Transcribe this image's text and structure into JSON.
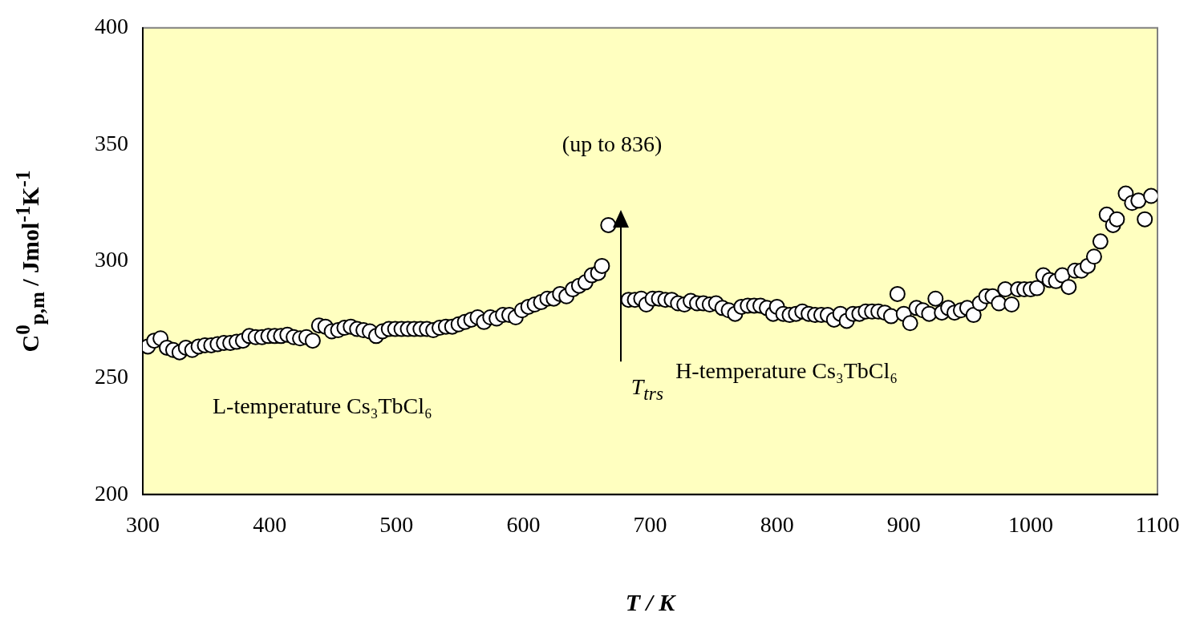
{
  "chart_data": {
    "type": "scatter",
    "xlabel": "T / K",
    "ylabel": "C$^{0}$$_{p,m}$ / Jmol$^{-1}$K$^{-1}$",
    "annotations": [
      "(up to 836)",
      "T$_{trs}$",
      "L-temperature Cs₃TbCl₆",
      "H-temperature Cs₃TbCl₆"
    ],
    "xlim": [
      300,
      1100
    ],
    "xticks": [
      300,
      400,
      500,
      600,
      700,
      800,
      900,
      1000,
      1100
    ],
    "ylim": [
      200,
      400
    ],
    "yticks": [
      200,
      250,
      300,
      350,
      400
    ],
    "grid": false,
    "legend": false,
    "marker": "circle",
    "series": [
      {
        "color": "#ffffff",
        "x": [
          304,
          309,
          314,
          319,
          324,
          329,
          334,
          339,
          344,
          349,
          354,
          359,
          364,
          369,
          374,
          379,
          384,
          389,
          394,
          399,
          404,
          409,
          414,
          419,
          424,
          429,
          434,
          439,
          444,
          449,
          454,
          459,
          464,
          469,
          474,
          479,
          484,
          489,
          494,
          499,
          504,
          509,
          514,
          519,
          524,
          529,
          534,
          539,
          544,
          549,
          554,
          559,
          564,
          569,
          574,
          579,
          584,
          589,
          594,
          599,
          604,
          609,
          614,
          619,
          624,
          629,
          634,
          639,
          644,
          649,
          654,
          659,
          662,
          667,
          683,
          688,
          693,
          697,
          702,
          707,
          712,
          717,
          722,
          727,
          732,
          737,
          742,
          747,
          752,
          757,
          762,
          767,
          772,
          777,
          782,
          787,
          792,
          797,
          800,
          805,
          810,
          815,
          820,
          825,
          830,
          835,
          840,
          845,
          850,
          855,
          860,
          865,
          870,
          875,
          880,
          885,
          890,
          895,
          900,
          905,
          910,
          915,
          920,
          925,
          930,
          935,
          940,
          945,
          950,
          955,
          960,
          965,
          970,
          975,
          980,
          985,
          990,
          995,
          1000,
          1005,
          1010,
          1015,
          1020,
          1025,
          1030,
          1035,
          1040,
          1045,
          1050,
          1055,
          1060,
          1065,
          1068,
          1075,
          1080,
          1085,
          1090,
          1095
        ],
        "values": [
          263.5,
          266,
          267,
          263,
          262,
          261,
          263,
          262,
          263.5,
          264,
          264,
          264.5,
          265,
          265,
          265.5,
          266,
          268,
          267.5,
          267.5,
          268,
          268,
          268,
          268.5,
          267.5,
          267,
          267.5,
          266,
          272.5,
          272,
          270,
          270.5,
          271.5,
          272,
          271,
          270.5,
          270,
          268,
          270,
          271,
          271,
          271,
          271,
          271,
          271,
          271,
          270.5,
          271.5,
          272,
          272,
          273,
          274,
          275,
          276,
          274,
          276,
          275.5,
          277,
          277,
          276,
          279,
          280.5,
          281.5,
          282.5,
          284,
          284,
          286,
          285,
          288,
          289.5,
          291,
          294,
          295,
          298,
          315.5,
          283.5,
          283.5,
          284,
          281.5,
          284,
          284,
          283.5,
          283.5,
          282,
          281.5,
          283,
          282,
          282,
          281.5,
          282,
          280,
          279,
          277.5,
          280.5,
          281,
          281,
          281,
          280,
          277.5,
          280.5,
          277.5,
          277,
          277.5,
          278.5,
          277.5,
          277,
          277,
          277,
          275,
          277.5,
          274.5,
          277.5,
          277.5,
          278.5,
          278.5,
          278.5,
          278,
          276.5,
          286,
          277.5,
          273.5,
          280,
          279,
          277.5,
          284,
          278,
          280,
          278,
          279,
          280,
          277,
          282,
          285,
          285,
          282,
          288,
          281.5,
          288,
          288,
          288,
          288.5,
          294,
          292,
          291.5,
          294,
          289,
          296,
          296,
          298,
          302,
          308.5,
          320,
          315.5,
          318,
          329,
          325,
          326,
          318,
          328
        ]
      }
    ]
  }
}
